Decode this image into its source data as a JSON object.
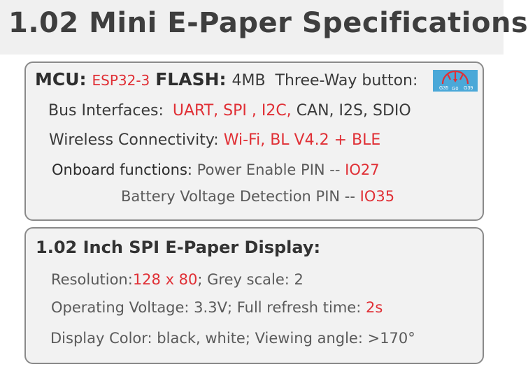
{
  "title": "1.02 Mini E-Paper Specifications",
  "board": {
    "mcu_label": "MCU:",
    "mcu_value": "ESP32-3",
    "flash_label": "FLASH:",
    "flash_value": "4MB",
    "button_label": "Three-Way button:",
    "button_image": {
      "pins": [
        "G35",
        "G0",
        "G39"
      ],
      "colors": {
        "background": "#4aa8d8",
        "arrows": "#e02f35"
      }
    },
    "bus_label": "Bus Interfaces:",
    "bus_highlight": "UART, SPI , I2C,",
    "bus_rest": "CAN, I2S, SDIO",
    "wireless_label": "Wireless Connectivity:",
    "wireless_value": "Wi-Fi, BL V4.2 + BLE",
    "onboard_label": "Onboard functions:",
    "onboard_1_text": "Power Enable PIN --",
    "onboard_1_pin": "IO27",
    "onboard_2_text": "Battery Voltage Detection PIN --",
    "onboard_2_pin": "IO35"
  },
  "display": {
    "heading": "1.02 Inch SPI E-Paper Display:",
    "resolution_label": "Resolution:",
    "resolution_value": "128 x 80",
    "grey_text": ";  Grey scale: 2",
    "voltage_text": "Operating Voltage: 3.3V;  Full refresh time:",
    "refresh_value": "2s",
    "color_text": "Display Color: black, white; Viewing angle: >170°"
  },
  "colors": {
    "accent_red": "#e02f35",
    "panel_bg": "#f2f2f2",
    "panel_border": "#8a8a8a"
  }
}
